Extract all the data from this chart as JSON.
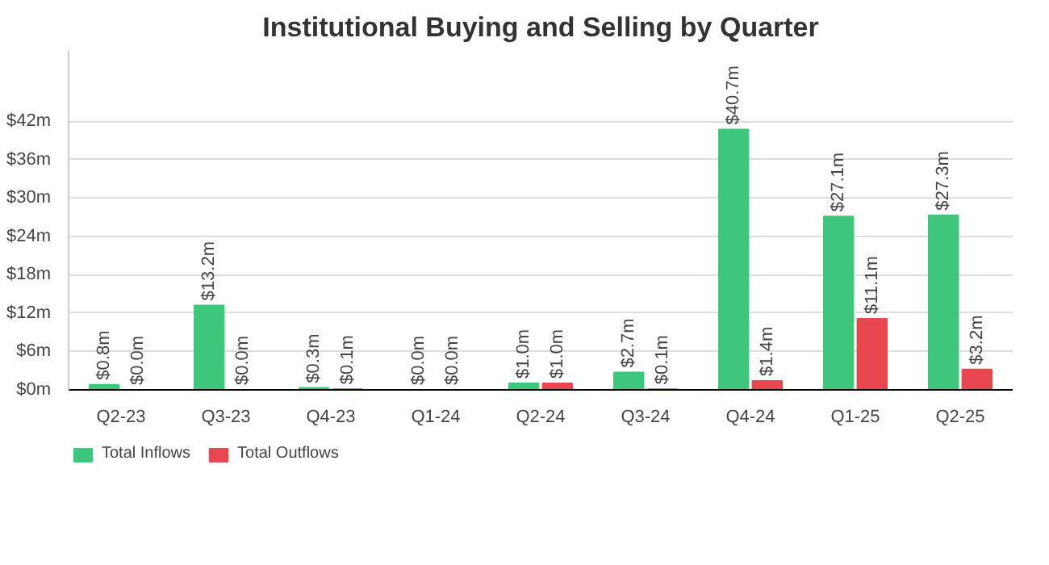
{
  "chart_data": {
    "type": "bar",
    "title": "Institutional Buying and Selling by Quarter",
    "categories": [
      "Q2-23",
      "Q3-23",
      "Q4-23",
      "Q1-24",
      "Q2-24",
      "Q3-24",
      "Q4-24",
      "Q1-25",
      "Q2-25"
    ],
    "series": [
      {
        "name": "Total Inflows",
        "color": "#3dc77d",
        "values": [
          0.8,
          13.2,
          0.3,
          0.0,
          1.0,
          2.7,
          40.7,
          27.1,
          27.3
        ],
        "value_labels": [
          "$0.8m",
          "$13.2m",
          "$0.3m",
          "$0.0m",
          "$1.0m",
          "$2.7m",
          "$40.7m",
          "$27.1m",
          "$27.3m"
        ]
      },
      {
        "name": "Total Outflows",
        "color": "#e9474f",
        "values": [
          0.0,
          0.0,
          0.1,
          0.0,
          1.0,
          0.1,
          1.4,
          11.1,
          3.2
        ],
        "value_labels": [
          "$0.0m",
          "$0.0m",
          "$0.1m",
          "$0.0m",
          "$1.0m",
          "$0.1m",
          "$1.4m",
          "$11.1m",
          "$3.2m"
        ]
      }
    ],
    "ylim": [
      0,
      53
    ],
    "yticks": [
      {
        "value": 0,
        "label": "$0m"
      },
      {
        "value": 6,
        "label": "$6m"
      },
      {
        "value": 12,
        "label": "$12m"
      },
      {
        "value": 18,
        "label": "$18m"
      },
      {
        "value": 24,
        "label": "$24m"
      },
      {
        "value": 30,
        "label": "$30m"
      },
      {
        "value": 36,
        "label": "$36m"
      },
      {
        "value": 42,
        "label": "$42m"
      }
    ],
    "grid": "y",
    "legend": "bottom left"
  }
}
